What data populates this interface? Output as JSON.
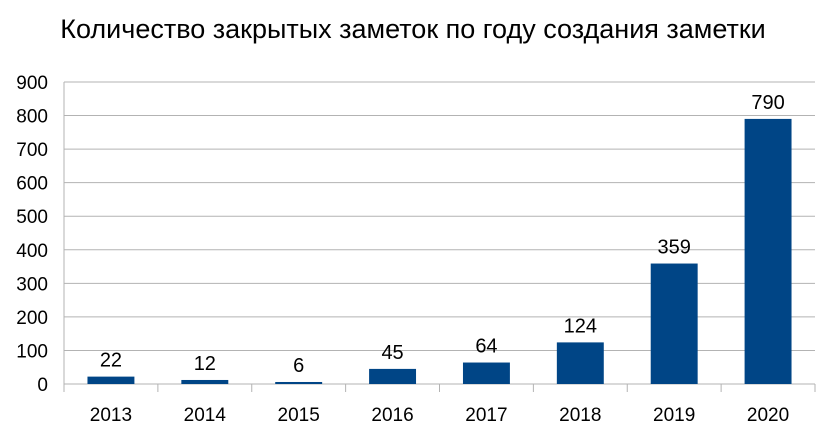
{
  "chart_data": {
    "type": "bar",
    "title": "Количество закрытых заметок по году создания заметки",
    "xlabel": "",
    "ylabel": "",
    "categories": [
      "2013",
      "2014",
      "2015",
      "2016",
      "2017",
      "2018",
      "2019",
      "2020"
    ],
    "values": [
      22,
      12,
      6,
      45,
      64,
      124,
      359,
      790
    ],
    "data_labels": [
      "22",
      "12",
      "6",
      "45",
      "64",
      "124",
      "359",
      "790"
    ],
    "ylim": [
      0,
      900
    ],
    "yticks": [
      0,
      100,
      200,
      300,
      400,
      500,
      600,
      700,
      800,
      900
    ],
    "ytick_labels": [
      "0",
      "100",
      "200",
      "300",
      "400",
      "500",
      "600",
      "700",
      "800",
      "900"
    ],
    "grid": true,
    "legend": "none",
    "bar_color": "#004586",
    "grid_color": "#b3b3b3"
  }
}
